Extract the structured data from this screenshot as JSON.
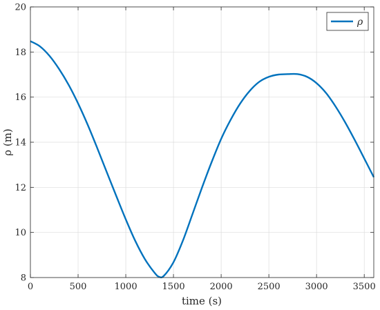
{
  "chart_data": {
    "type": "line",
    "xlabel": "time (s)",
    "ylabel": "ρ (m)",
    "xlim": [
      0,
      3600
    ],
    "ylim": [
      8,
      20
    ],
    "xticks": [
      0,
      500,
      1000,
      1500,
      2000,
      2500,
      3000,
      3500
    ],
    "yticks": [
      8,
      10,
      12,
      14,
      16,
      18,
      20
    ],
    "grid": true,
    "legend_position": "top-right",
    "series": [
      {
        "name": "ρ",
        "color": "#0072BD",
        "x": [
          0,
          100,
          200,
          300,
          400,
          500,
          600,
          700,
          800,
          900,
          1000,
          1100,
          1200,
          1300,
          1350,
          1400,
          1500,
          1600,
          1700,
          1800,
          1900,
          2000,
          2100,
          2200,
          2300,
          2400,
          2500,
          2600,
          2700,
          2800,
          2900,
          3000,
          3100,
          3200,
          3300,
          3400,
          3500,
          3600
        ],
        "y": [
          18.48,
          18.25,
          17.83,
          17.25,
          16.55,
          15.72,
          14.78,
          13.75,
          12.68,
          11.62,
          10.58,
          9.62,
          8.82,
          8.22,
          8.03,
          8.08,
          8.68,
          9.65,
          10.82,
          12.0,
          13.12,
          14.15,
          15.0,
          15.72,
          16.28,
          16.68,
          16.9,
          17.0,
          17.02,
          17.02,
          16.9,
          16.62,
          16.18,
          15.58,
          14.88,
          14.1,
          13.28,
          12.45
        ]
      }
    ]
  }
}
